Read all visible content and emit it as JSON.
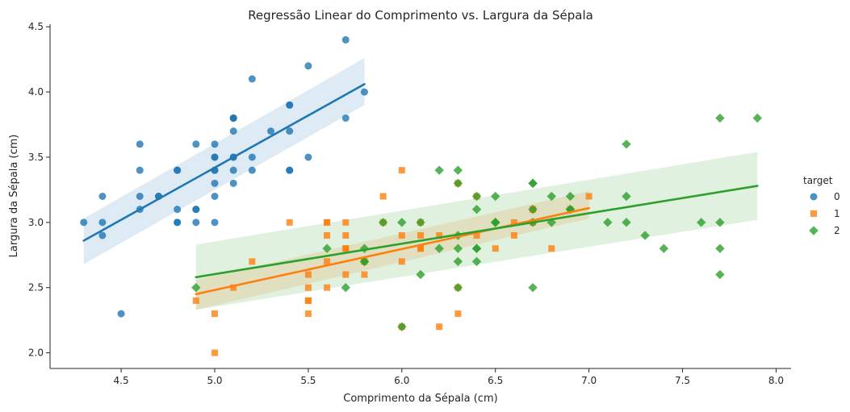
{
  "chart_data": {
    "type": "scatter",
    "title": "Regressão Linear do Comprimento vs. Largura da Sépala",
    "xlabel": "Comprimento da Sépala (cm)",
    "ylabel": "Largura da Sépala (cm)",
    "xlim": [
      4.12,
      8.08
    ],
    "ylim": [
      1.88,
      4.52
    ],
    "xticks": [
      4.5,
      5.0,
      5.5,
      6.0,
      6.5,
      7.0,
      7.5,
      8.0
    ],
    "xtick_labels": [
      "4.5",
      "5.0",
      "5.5",
      "6.0",
      "6.5",
      "7.0",
      "7.5",
      "8.0"
    ],
    "yticks": [
      2.0,
      2.5,
      3.0,
      3.5,
      4.0,
      4.5
    ],
    "ytick_labels": [
      "2.0",
      "2.5",
      "3.0",
      "3.5",
      "4.0",
      "4.5"
    ],
    "grid": false,
    "legend": {
      "title": "target",
      "placement": "right"
    },
    "series": [
      {
        "name": "0",
        "marker": "circle",
        "color": "#1f77b4",
        "points": [
          [
            5.1,
            3.5
          ],
          [
            4.9,
            3.0
          ],
          [
            4.7,
            3.2
          ],
          [
            4.6,
            3.1
          ],
          [
            5.0,
            3.6
          ],
          [
            5.4,
            3.9
          ],
          [
            4.6,
            3.4
          ],
          [
            5.0,
            3.4
          ],
          [
            4.4,
            2.9
          ],
          [
            4.9,
            3.1
          ],
          [
            5.4,
            3.7
          ],
          [
            4.8,
            3.4
          ],
          [
            4.8,
            3.0
          ],
          [
            4.3,
            3.0
          ],
          [
            5.8,
            4.0
          ],
          [
            5.7,
            4.4
          ],
          [
            5.4,
            3.9
          ],
          [
            5.1,
            3.5
          ],
          [
            5.7,
            3.8
          ],
          [
            5.1,
            3.8
          ],
          [
            5.4,
            3.4
          ],
          [
            5.1,
            3.7
          ],
          [
            4.6,
            3.6
          ],
          [
            5.1,
            3.3
          ],
          [
            4.8,
            3.4
          ],
          [
            5.0,
            3.0
          ],
          [
            5.0,
            3.4
          ],
          [
            5.2,
            3.5
          ],
          [
            5.2,
            3.4
          ],
          [
            4.7,
            3.2
          ],
          [
            4.8,
            3.1
          ],
          [
            5.4,
            3.4
          ],
          [
            5.2,
            4.1
          ],
          [
            5.5,
            4.2
          ],
          [
            4.9,
            3.1
          ],
          [
            5.0,
            3.2
          ],
          [
            5.5,
            3.5
          ],
          [
            4.9,
            3.6
          ],
          [
            4.4,
            3.0
          ],
          [
            5.1,
            3.4
          ],
          [
            5.0,
            3.5
          ],
          [
            4.5,
            2.3
          ],
          [
            4.4,
            3.2
          ],
          [
            5.0,
            3.5
          ],
          [
            5.1,
            3.8
          ],
          [
            4.8,
            3.0
          ],
          [
            5.1,
            3.8
          ],
          [
            4.6,
            3.2
          ],
          [
            5.3,
            3.7
          ],
          [
            5.0,
            3.3
          ]
        ],
        "fit": {
          "x": [
            4.3,
            5.8
          ],
          "y": [
            2.86,
            4.06
          ],
          "ci_low": [
            2.68,
            3.9
          ],
          "ci_high": [
            3.03,
            4.26
          ]
        }
      },
      {
        "name": "1",
        "marker": "square",
        "color": "#ff7f0e",
        "points": [
          [
            7.0,
            3.2
          ],
          [
            6.4,
            3.2
          ],
          [
            6.9,
            3.1
          ],
          [
            5.5,
            2.3
          ],
          [
            6.5,
            2.8
          ],
          [
            5.7,
            2.8
          ],
          [
            6.3,
            3.3
          ],
          [
            4.9,
            2.4
          ],
          [
            6.6,
            2.9
          ],
          [
            5.2,
            2.7
          ],
          [
            5.0,
            2.0
          ],
          [
            5.9,
            3.0
          ],
          [
            6.0,
            2.2
          ],
          [
            6.1,
            2.9
          ],
          [
            5.6,
            2.9
          ],
          [
            6.7,
            3.1
          ],
          [
            5.6,
            3.0
          ],
          [
            5.8,
            2.7
          ],
          [
            6.2,
            2.2
          ],
          [
            5.6,
            2.5
          ],
          [
            5.9,
            3.2
          ],
          [
            6.1,
            2.8
          ],
          [
            6.3,
            2.5
          ],
          [
            6.1,
            2.8
          ],
          [
            6.4,
            2.9
          ],
          [
            6.6,
            3.0
          ],
          [
            6.8,
            2.8
          ],
          [
            6.7,
            3.0
          ],
          [
            6.0,
            2.9
          ],
          [
            5.7,
            2.6
          ],
          [
            5.5,
            2.4
          ],
          [
            5.5,
            2.4
          ],
          [
            5.8,
            2.7
          ],
          [
            6.0,
            2.7
          ],
          [
            5.4,
            3.0
          ],
          [
            6.0,
            3.4
          ],
          [
            6.7,
            3.1
          ],
          [
            6.3,
            2.3
          ],
          [
            5.6,
            3.0
          ],
          [
            5.5,
            2.5
          ],
          [
            5.5,
            2.6
          ],
          [
            6.1,
            3.0
          ],
          [
            5.8,
            2.6
          ],
          [
            5.0,
            2.3
          ],
          [
            5.6,
            2.7
          ],
          [
            5.7,
            3.0
          ],
          [
            5.7,
            2.9
          ],
          [
            6.2,
            2.9
          ],
          [
            5.1,
            2.5
          ],
          [
            5.7,
            2.8
          ]
        ],
        "fit": {
          "x": [
            4.9,
            7.0
          ],
          "y": [
            2.45,
            3.11
          ],
          "ci_low": [
            2.33,
            3.03
          ],
          "ci_high": [
            2.56,
            3.24
          ]
        }
      },
      {
        "name": "2",
        "marker": "diamond",
        "color": "#2ca02c",
        "points": [
          [
            6.3,
            3.3
          ],
          [
            5.8,
            2.7
          ],
          [
            7.1,
            3.0
          ],
          [
            6.3,
            2.9
          ],
          [
            6.5,
            3.0
          ],
          [
            7.6,
            3.0
          ],
          [
            4.9,
            2.5
          ],
          [
            7.3,
            2.9
          ],
          [
            6.7,
            2.5
          ],
          [
            7.2,
            3.6
          ],
          [
            6.5,
            3.2
          ],
          [
            6.4,
            2.7
          ],
          [
            6.8,
            3.0
          ],
          [
            5.7,
            2.5
          ],
          [
            5.8,
            2.8
          ],
          [
            6.4,
            3.2
          ],
          [
            6.5,
            3.0
          ],
          [
            7.7,
            3.8
          ],
          [
            7.7,
            2.6
          ],
          [
            6.0,
            2.2
          ],
          [
            6.9,
            3.2
          ],
          [
            5.6,
            2.8
          ],
          [
            7.7,
            2.8
          ],
          [
            6.3,
            2.7
          ],
          [
            6.7,
            3.3
          ],
          [
            7.2,
            3.2
          ],
          [
            6.2,
            2.8
          ],
          [
            6.1,
            3.0
          ],
          [
            6.4,
            2.8
          ],
          [
            7.2,
            3.0
          ],
          [
            7.4,
            2.8
          ],
          [
            7.9,
            3.8
          ],
          [
            6.4,
            2.8
          ],
          [
            6.3,
            2.8
          ],
          [
            6.1,
            2.6
          ],
          [
            7.7,
            3.0
          ],
          [
            6.3,
            3.4
          ],
          [
            6.4,
            3.1
          ],
          [
            6.0,
            3.0
          ],
          [
            6.9,
            3.1
          ],
          [
            6.7,
            3.1
          ],
          [
            6.9,
            3.1
          ],
          [
            5.8,
            2.7
          ],
          [
            6.8,
            3.2
          ],
          [
            6.7,
            3.3
          ],
          [
            6.7,
            3.0
          ],
          [
            6.3,
            2.5
          ],
          [
            6.5,
            3.0
          ],
          [
            6.2,
            3.4
          ],
          [
            5.9,
            3.0
          ]
        ],
        "fit": {
          "x": [
            4.9,
            7.9
          ],
          "y": [
            2.58,
            3.28
          ],
          "ci_low": [
            2.33,
            3.02
          ],
          "ci_high": [
            2.83,
            3.54
          ]
        }
      }
    ]
  }
}
